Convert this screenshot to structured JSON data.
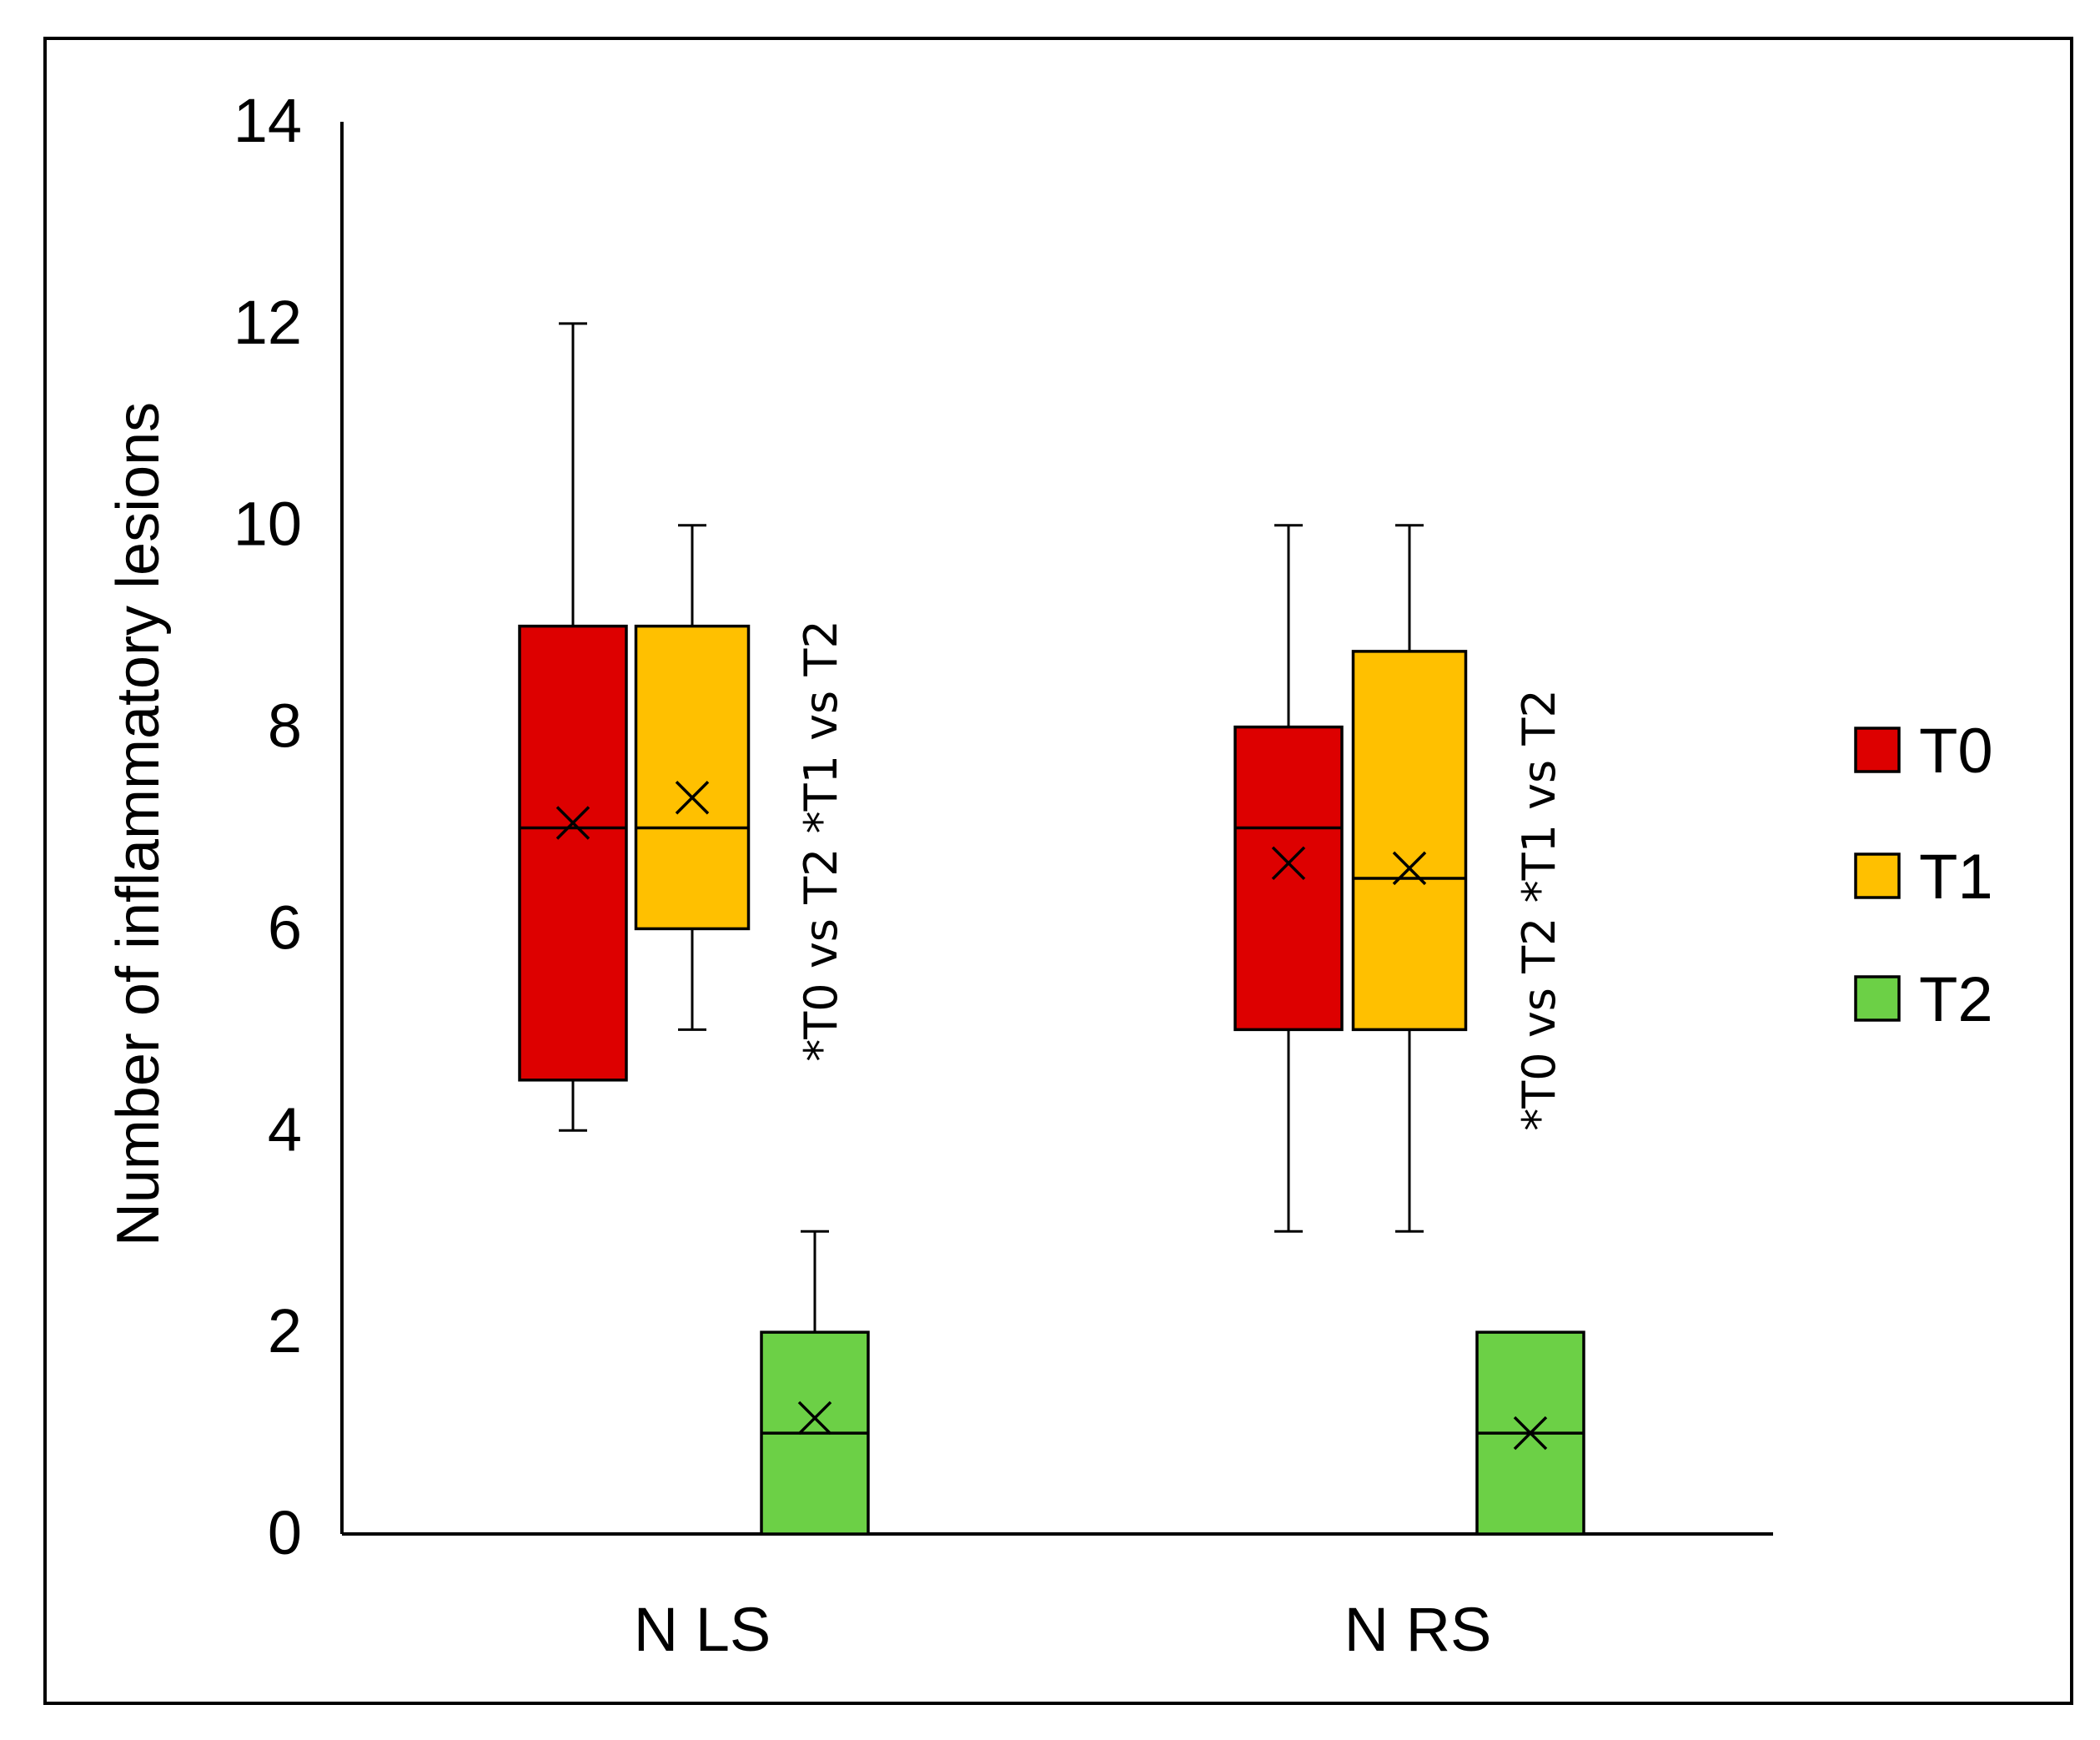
{
  "chart_data": {
    "type": "boxplot",
    "ylabel": "Number of inflammatory lesions",
    "xlabel": "",
    "ylim": [
      0,
      14
    ],
    "yticks": [
      0,
      2,
      4,
      6,
      8,
      10,
      12,
      14
    ],
    "categories": [
      "N LS",
      "N RS"
    ],
    "legend_position": "right",
    "series": [
      {
        "name": "T0",
        "color": "#dd0000",
        "boxes": [
          {
            "category": "N LS",
            "min": 4,
            "q1": 4.5,
            "median": 7,
            "q3": 9,
            "max": 12,
            "mean": 7.05
          },
          {
            "category": "N RS",
            "min": 3,
            "q1": 5,
            "median": 7,
            "q3": 8,
            "max": 10,
            "mean": 6.65
          }
        ]
      },
      {
        "name": "T1",
        "color": "#ffc000",
        "boxes": [
          {
            "category": "N LS",
            "min": 5,
            "q1": 6,
            "median": 7,
            "q3": 9,
            "max": 10,
            "mean": 7.3
          },
          {
            "category": "N RS",
            "min": 3,
            "q1": 5,
            "median": 6.5,
            "q3": 8.75,
            "max": 10,
            "mean": 6.6
          }
        ]
      },
      {
        "name": "T2",
        "color": "#6cd046",
        "boxes": [
          {
            "category": "N LS",
            "min": 0,
            "q1": 0,
            "median": 1,
            "q3": 2,
            "max": 3,
            "mean": 1.15
          },
          {
            "category": "N RS",
            "min": 0,
            "q1": 0,
            "median": 1,
            "q3": 2,
            "max": 2,
            "mean": 1
          }
        ]
      }
    ],
    "annotations": [
      {
        "category": "N LS",
        "text": "*T0 vs T2 *T1 vs T2"
      },
      {
        "category": "N RS",
        "text": "*T0 vs T2  *T1 vs T2"
      }
    ]
  }
}
